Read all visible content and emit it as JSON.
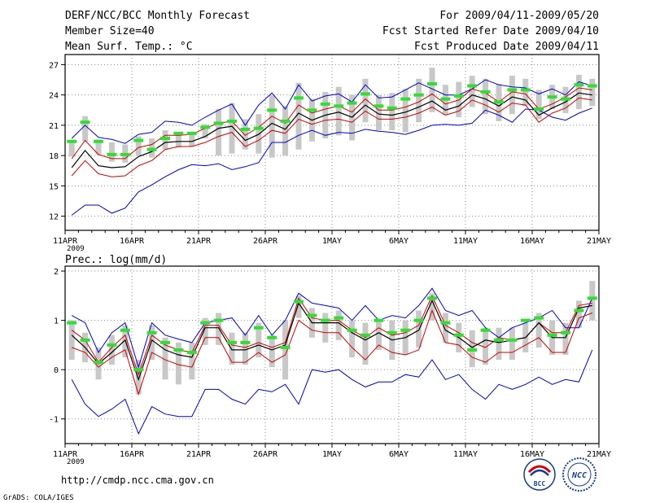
{
  "header": {
    "title": "DERF/NCC/BCC Monthly Forecast",
    "member_size": "Member Size=40",
    "period": "For 2009/04/11-2009/05/20",
    "started_refer": "Fcst Started Refer Date 2009/04/10",
    "produced": "Fcst Produced Date 2009/04/11"
  },
  "footer": {
    "url": "http://cmdp.ncc.cma.gov.cn",
    "grads": "GrADS: COLA/IGES",
    "logo_bcc_text": "BCC",
    "logo_ncc_text": "NCC"
  },
  "colors": {
    "ens_mean": "#000000",
    "spread": "#cc0000",
    "extremes": "#0000cc",
    "box": "#c8c8c8",
    "observed": "#33dd33"
  },
  "chart_data": [
    {
      "type": "line",
      "title": "Mean Surf. Temp.: °C",
      "year_label": "2009",
      "x_tick_labels": [
        "11APR",
        "16APR",
        "21APR",
        "26APR",
        "1MAY",
        "6MAY",
        "11MAY",
        "16MAY",
        "21MAY"
      ],
      "x_range_days": [
        0,
        40
      ],
      "ylim": [
        10.6,
        28
      ],
      "yticks": [
        12,
        15,
        18,
        21,
        24,
        27
      ],
      "series": [
        {
          "name": "max",
          "color": "#0000cc",
          "values": [
            19.7,
            21.0,
            19.8,
            19.6,
            19.2,
            20.1,
            20.3,
            21.4,
            21.3,
            21.0,
            21.8,
            22.5,
            23.1,
            21.0,
            23.0,
            24.2,
            22.6,
            25.0,
            23.4,
            23.9,
            24.1,
            23.3,
            25.0,
            23.7,
            23.8,
            24.5,
            25.2,
            24.6,
            24.0,
            24.0,
            24.6,
            25.5,
            25.0,
            24.8,
            24.7,
            24.1,
            24.6,
            24.0,
            25.3,
            24.9
          ]
        },
        {
          "name": "upper",
          "color": "#cc0000",
          "values": [
            17.7,
            19.5,
            18.1,
            17.7,
            17.7,
            18.8,
            19.1,
            20.0,
            20.0,
            20.1,
            20.7,
            21.2,
            21.4,
            20.0,
            20.8,
            21.9,
            21.2,
            23.0,
            22.2,
            22.6,
            22.9,
            22.3,
            23.6,
            22.5,
            22.5,
            22.8,
            23.3,
            24.1,
            23.1,
            23.5,
            24.6,
            24.2,
            23.3,
            24.3,
            24.1,
            22.6,
            23.1,
            23.8,
            24.7,
            24.5
          ]
        },
        {
          "name": "mean",
          "color": "#000000",
          "values": [
            16.8,
            18.5,
            17.0,
            16.8,
            16.9,
            17.9,
            18.4,
            19.3,
            19.4,
            19.4,
            19.9,
            20.7,
            20.9,
            19.5,
            20.1,
            21.2,
            20.6,
            22.2,
            21.5,
            22.0,
            22.3,
            21.8,
            23.0,
            22.1,
            22.0,
            22.3,
            22.8,
            23.4,
            22.5,
            22.9,
            24.0,
            23.6,
            22.9,
            23.8,
            23.5,
            22.0,
            22.7,
            23.3,
            24.2,
            24.0
          ]
        },
        {
          "name": "lower",
          "color": "#cc0000",
          "values": [
            16.0,
            17.5,
            16.2,
            15.9,
            16.0,
            17.0,
            17.5,
            18.6,
            18.9,
            18.9,
            19.3,
            19.9,
            20.3,
            18.9,
            19.5,
            20.5,
            20.2,
            21.6,
            21.1,
            21.5,
            21.6,
            21.3,
            22.4,
            21.6,
            21.6,
            21.8,
            22.2,
            22.8,
            22.0,
            22.4,
            23.5,
            23.0,
            22.3,
            23.2,
            23.0,
            21.3,
            22.2,
            22.7,
            23.7,
            23.5
          ]
        },
        {
          "name": "min",
          "color": "#0000cc",
          "values": [
            12.1,
            13.1,
            13.1,
            12.3,
            12.8,
            14.4,
            15.1,
            15.9,
            16.6,
            17.1,
            17.0,
            17.2,
            16.6,
            16.9,
            17.3,
            19.3,
            19.3,
            20.0,
            20.5,
            20.0,
            20.3,
            20.2,
            20.6,
            20.4,
            20.3,
            20.1,
            20.5,
            21.0,
            21.1,
            21.0,
            21.2,
            22.5,
            22.0,
            21.3,
            22.6,
            22.5,
            21.8,
            21.5,
            22.2,
            22.7
          ]
        },
        {
          "name": "box_high",
          "color": "#c8c8c8",
          "values": [
            19.3,
            21.9,
            19.6,
            19.3,
            19.1,
            19.9,
            19.7,
            20.5,
            20.3,
            20.3,
            21.1,
            22.6,
            23.2,
            21.6,
            22.1,
            24.0,
            22.9,
            25.2,
            23.6,
            24.3,
            24.8,
            24.0,
            25.6,
            24.0,
            24.2,
            24.6,
            25.6,
            26.7,
            25.0,
            25.3,
            25.9,
            25.6,
            25.1,
            25.9,
            25.6,
            24.5,
            25.0,
            24.8,
            26.0,
            25.6
          ]
        },
        {
          "name": "box_low",
          "color": "#c8c8c8",
          "values": [
            17.9,
            19.4,
            18.1,
            17.4,
            17.3,
            18.0,
            17.8,
            18.6,
            18.8,
            18.9,
            19.7,
            18.0,
            18.2,
            18.6,
            18.2,
            17.8,
            18.0,
            18.6,
            19.4,
            19.7,
            20.0,
            19.5,
            21.3,
            20.5,
            20.5,
            20.3,
            21.3,
            22.3,
            22.0,
            21.8,
            22.8,
            22.1,
            21.4,
            22.1,
            22.9,
            21.6,
            22.6,
            22.2,
            22.6,
            22.9
          ]
        },
        {
          "name": "observed",
          "color": "#33dd33",
          "values": [
            19.4,
            21.3,
            19.4,
            18.1,
            18.1,
            19.5,
            18.6,
            19.7,
            20.2,
            20.2,
            20.8,
            21.2,
            21.4,
            20.6,
            20.7,
            22.5,
            21.4,
            23.7,
            22.5,
            23.1,
            22.9,
            23.2,
            24.1,
            22.9,
            22.7,
            23.6,
            24.0,
            25.1,
            23.6,
            23.9,
            24.9,
            24.3,
            23.3,
            24.5,
            24.5,
            22.6,
            23.8,
            23.6,
            25.0,
            24.9
          ]
        }
      ]
    },
    {
      "type": "line",
      "title": "Prec.: log(mm/d)",
      "year_label": "2009",
      "x_tick_labels": [
        "11APR",
        "16APR",
        "21APR",
        "26APR",
        "1MAY",
        "6MAY",
        "11MAY",
        "16MAY",
        "21MAY"
      ],
      "x_range_days": [
        0,
        40
      ],
      "ylim": [
        -1.5,
        2.1
      ],
      "yticks": [
        -1,
        0,
        1,
        2
      ],
      "series": [
        {
          "name": "max",
          "color": "#0000cc",
          "values": [
            1.1,
            0.95,
            0.35,
            0.75,
            0.95,
            0.05,
            0.95,
            0.7,
            0.62,
            0.55,
            0.95,
            1.0,
            1.05,
            0.7,
            1.1,
            0.7,
            1.0,
            1.55,
            1.35,
            1.3,
            1.25,
            1.0,
            1.3,
            1.0,
            1.1,
            1.05,
            1.3,
            1.65,
            1.2,
            1.1,
            1.2,
            0.85,
            0.65,
            0.85,
            0.95,
            1.05,
            1.2,
            0.85,
            0.85,
            1.45
          ]
        },
        {
          "name": "upper",
          "color": "#cc0000",
          "values": [
            0.8,
            0.6,
            0.15,
            0.45,
            0.7,
            -0.1,
            0.7,
            0.5,
            0.4,
            0.35,
            0.9,
            0.9,
            0.5,
            0.45,
            0.55,
            0.45,
            0.55,
            1.45,
            1.05,
            1.0,
            1.0,
            0.8,
            0.65,
            0.85,
            0.7,
            0.75,
            0.9,
            1.5,
            0.9,
            0.75,
            0.55,
            0.45,
            0.65,
            0.6,
            0.65,
            0.95,
            0.75,
            0.75,
            1.3,
            1.35
          ]
        },
        {
          "name": "mean",
          "color": "#000000",
          "values": [
            0.7,
            0.45,
            0.12,
            0.35,
            0.6,
            -0.2,
            0.6,
            0.4,
            0.3,
            0.25,
            0.85,
            0.85,
            0.4,
            0.4,
            0.5,
            0.4,
            0.5,
            1.35,
            0.95,
            0.95,
            0.95,
            0.75,
            0.6,
            0.75,
            0.6,
            0.65,
            0.8,
            1.4,
            0.8,
            0.65,
            0.45,
            0.6,
            0.55,
            0.6,
            0.65,
            0.95,
            0.65,
            0.65,
            1.25,
            1.3
          ]
        },
        {
          "name": "lower",
          "color": "#cc0000",
          "values": [
            0.45,
            0.35,
            0.05,
            0.25,
            0.4,
            -0.5,
            0.35,
            0.2,
            0.1,
            0.05,
            0.65,
            0.65,
            0.15,
            0.15,
            0.35,
            0.15,
            0.3,
            1.0,
            0.8,
            0.75,
            0.75,
            0.45,
            0.2,
            0.5,
            0.35,
            0.3,
            0.4,
            1.2,
            0.55,
            0.5,
            0.25,
            0.15,
            0.35,
            0.35,
            0.5,
            0.65,
            0.35,
            0.35,
            1.05,
            1.15
          ]
        },
        {
          "name": "min",
          "color": "#0000cc",
          "values": [
            -0.2,
            -0.7,
            -0.95,
            -0.8,
            -0.6,
            -1.3,
            -0.75,
            -0.9,
            -0.95,
            -0.95,
            -0.4,
            -0.4,
            -0.6,
            -0.7,
            -0.4,
            -0.45,
            -0.3,
            -0.7,
            0.0,
            -0.05,
            0.0,
            -0.2,
            -0.35,
            -0.25,
            -0.25,
            -0.1,
            -0.15,
            0.2,
            -0.2,
            -0.1,
            -0.4,
            -0.6,
            -0.3,
            -0.4,
            -0.3,
            -0.15,
            -0.3,
            -0.2,
            -0.25,
            0.4
          ]
        },
        {
          "name": "box_high",
          "color": "#c8c8c8",
          "values": [
            1.0,
            0.75,
            0.45,
            0.7,
            0.9,
            0.2,
            0.9,
            0.65,
            0.55,
            0.55,
            1.05,
            1.15,
            0.75,
            0.75,
            0.95,
            0.7,
            1.0,
            1.5,
            1.25,
            1.15,
            1.2,
            1.0,
            0.95,
            1.0,
            1.0,
            1.0,
            1.2,
            1.55,
            1.15,
            0.95,
            0.8,
            0.85,
            0.85,
            0.85,
            0.95,
            1.15,
            1.0,
            0.95,
            1.4,
            1.8
          ]
        },
        {
          "name": "box_low",
          "color": "#c8c8c8",
          "values": [
            0.2,
            0.15,
            -0.2,
            0.1,
            0.25,
            -0.5,
            0.2,
            -0.2,
            -0.3,
            -0.2,
            0.5,
            0.5,
            0.1,
            0.1,
            0.25,
            0.05,
            -0.2,
            1.05,
            0.65,
            0.55,
            0.6,
            0.25,
            0.1,
            0.4,
            0.2,
            0.3,
            0.45,
            1.0,
            0.55,
            0.35,
            0.05,
            0.1,
            0.2,
            0.2,
            0.35,
            0.45,
            0.3,
            0.3,
            0.85,
            1.0
          ]
        },
        {
          "name": "observed",
          "color": "#33dd33",
          "values": [
            0.95,
            0.6,
            0.15,
            0.5,
            0.8,
            0.0,
            0.75,
            0.55,
            0.4,
            0.35,
            0.95,
            1.0,
            0.55,
            0.55,
            0.85,
            0.65,
            0.45,
            1.38,
            1.1,
            1.0,
            1.05,
            0.8,
            0.7,
            1.0,
            0.75,
            0.8,
            1.0,
            1.45,
            0.95,
            0.7,
            0.4,
            0.8,
            0.6,
            0.6,
            1.0,
            1.05,
            0.7,
            0.75,
            1.2,
            1.45
          ]
        }
      ]
    }
  ]
}
